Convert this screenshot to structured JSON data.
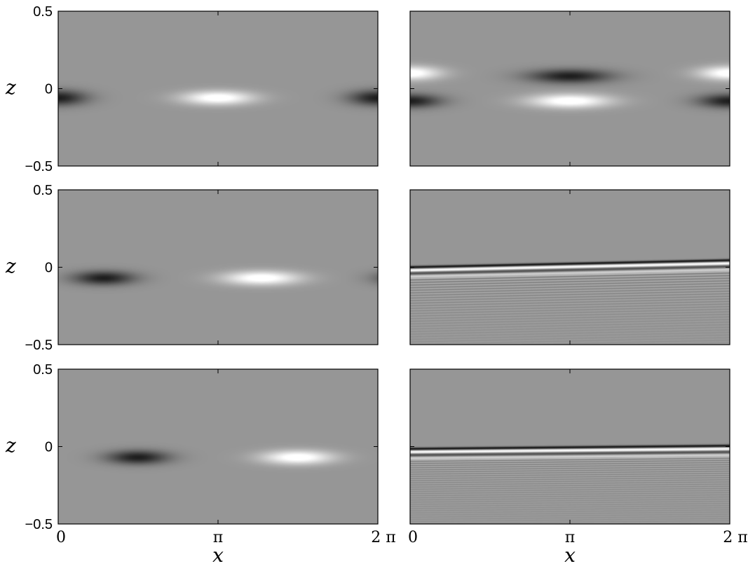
{
  "chart_data": {
    "type": "heatmap",
    "colormap": "gray",
    "layout": "3 rows x 2 columns",
    "xlabel": "x",
    "ylabel": "z",
    "xlim": [
      0,
      6.2832
    ],
    "ylim": [
      -0.5,
      0.5
    ],
    "x_ticks": [
      0,
      3.1416,
      6.2832
    ],
    "x_tick_labels": [
      "0",
      "π",
      "2 π"
    ],
    "y_ticks": [
      -0.5,
      0,
      0.5
    ],
    "y_tick_labels": [
      "−0.5",
      "0",
      "0.5"
    ],
    "panels": [
      {
        "row": 1,
        "col": 1,
        "pattern": "blobs",
        "features": [
          {
            "x": 0.0,
            "z": -0.06,
            "amplitude": -1.0,
            "x_width": 0.55,
            "z_width": 0.05
          },
          {
            "x": 3.14,
            "z": -0.06,
            "amplitude": 1.0,
            "x_width": 0.7,
            "z_width": 0.045
          },
          {
            "x": 6.28,
            "z": -0.06,
            "amplitude": -1.0,
            "x_width": 0.55,
            "z_width": 0.05
          }
        ]
      },
      {
        "row": 1,
        "col": 2,
        "pattern": "blobs",
        "features": [
          {
            "x": 0.0,
            "z": 0.1,
            "amplitude": 1.0,
            "x_width": 0.6,
            "z_width": 0.045
          },
          {
            "x": 0.0,
            "z": -0.08,
            "amplitude": -1.0,
            "x_width": 0.6,
            "z_width": 0.045
          },
          {
            "x": 3.14,
            "z": 0.08,
            "amplitude": -1.0,
            "x_width": 0.8,
            "z_width": 0.045
          },
          {
            "x": 3.14,
            "z": -0.08,
            "amplitude": 1.0,
            "x_width": 0.8,
            "z_width": 0.045
          },
          {
            "x": 6.28,
            "z": 0.1,
            "amplitude": 1.0,
            "x_width": 0.6,
            "z_width": 0.045
          },
          {
            "x": 6.28,
            "z": -0.08,
            "amplitude": -1.0,
            "x_width": 0.6,
            "z_width": 0.045
          }
        ]
      },
      {
        "row": 2,
        "col": 1,
        "pattern": "blobs",
        "features": [
          {
            "x": 0.9,
            "z": -0.07,
            "amplitude": -1.0,
            "x_width": 0.6,
            "z_width": 0.045
          },
          {
            "x": 4.0,
            "z": -0.07,
            "amplitude": 1.0,
            "x_width": 0.75,
            "z_width": 0.045
          },
          {
            "x": 6.9,
            "z": -0.07,
            "amplitude": -1.0,
            "x_width": 0.6,
            "z_width": 0.045
          }
        ]
      },
      {
        "row": 2,
        "col": 2,
        "pattern": "tilted_layer",
        "z_at_x0": 0.0,
        "z_at_x2pi": 0.045,
        "band_count": 30
      },
      {
        "row": 3,
        "col": 1,
        "pattern": "blobs",
        "features": [
          {
            "x": 1.57,
            "z": -0.07,
            "amplitude": -1.0,
            "x_width": 0.6,
            "z_width": 0.045
          },
          {
            "x": 4.71,
            "z": -0.07,
            "amplitude": 1.0,
            "x_width": 0.7,
            "z_width": 0.045
          }
        ]
      },
      {
        "row": 3,
        "col": 2,
        "pattern": "tilted_layer",
        "z_at_x0": -0.015,
        "z_at_x2pi": 0.005,
        "band_count": 36
      }
    ]
  }
}
